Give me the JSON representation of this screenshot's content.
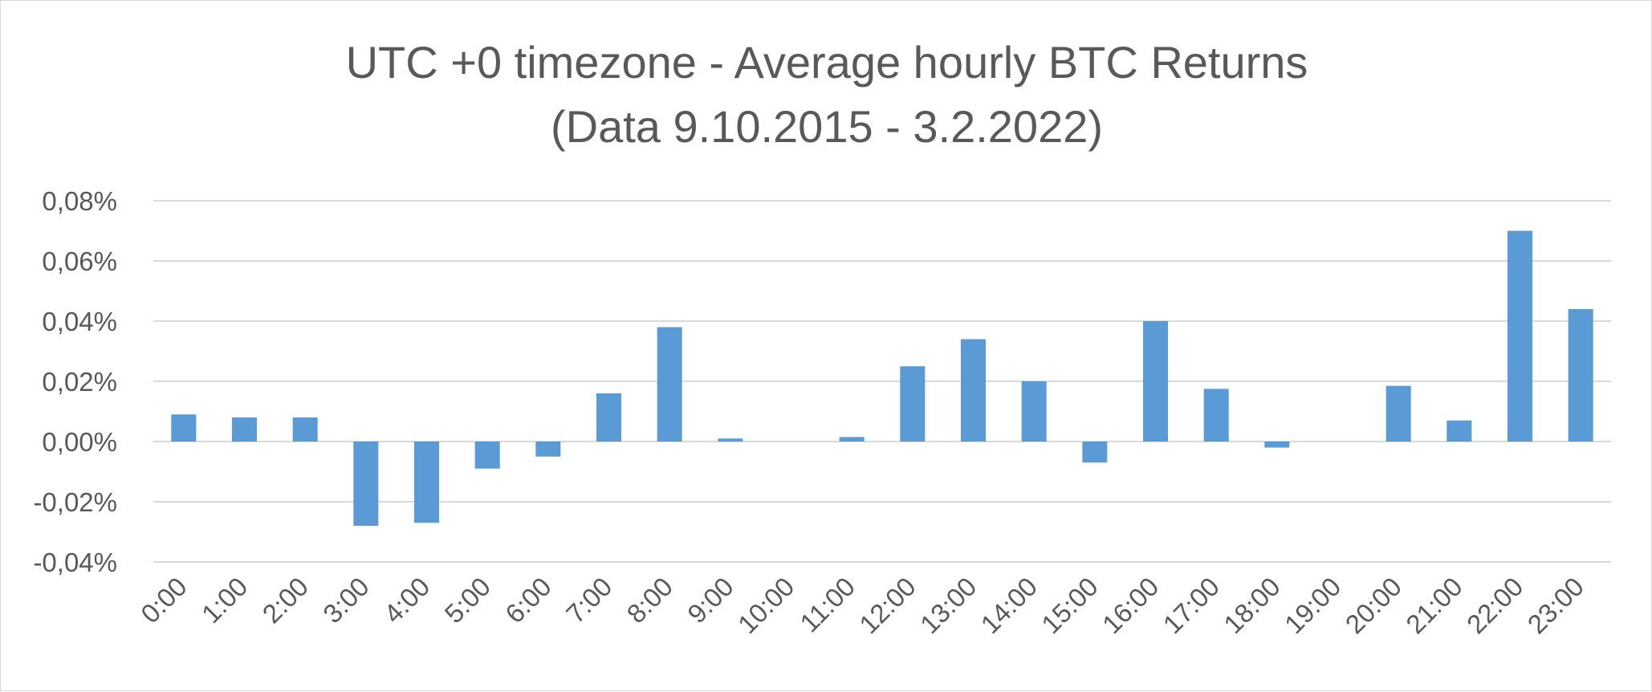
{
  "chart_data": {
    "type": "bar",
    "title_lines": [
      "UTC +0 timezone - Average hourly BTC Returns",
      "(Data 9.10.2015 - 3.2.2022)"
    ],
    "xlabel": "",
    "ylabel": "",
    "categories": [
      "0:00",
      "1:00",
      "2:00",
      "3:00",
      "4:00",
      "5:00",
      "6:00",
      "7:00",
      "8:00",
      "9:00",
      "10:00",
      "11:00",
      "12:00",
      "13:00",
      "14:00",
      "15:00",
      "16:00",
      "17:00",
      "18:00",
      "19:00",
      "20:00",
      "21:00",
      "22:00",
      "23:00"
    ],
    "values": [
      0.009,
      0.008,
      0.008,
      -0.028,
      -0.027,
      -0.009,
      -0.005,
      0.016,
      0.038,
      0.001,
      0.0,
      0.0015,
      0.025,
      0.034,
      0.02,
      -0.007,
      0.04,
      0.0175,
      -0.002,
      0.0,
      0.0185,
      0.007,
      0.07,
      0.044
    ],
    "value_unit": "%",
    "ylim": [
      -0.04,
      0.08
    ],
    "yticks": [
      0.08,
      0.06,
      0.04,
      0.02,
      0.0,
      -0.02,
      -0.04
    ],
    "ytick_labels": [
      "0,08%",
      "0,06%",
      "0,04%",
      "0,02%",
      "0,00%",
      "-0,02%",
      "-0,04%"
    ],
    "grid": true,
    "legend": "none",
    "bar_color": "#5b9bd5"
  }
}
